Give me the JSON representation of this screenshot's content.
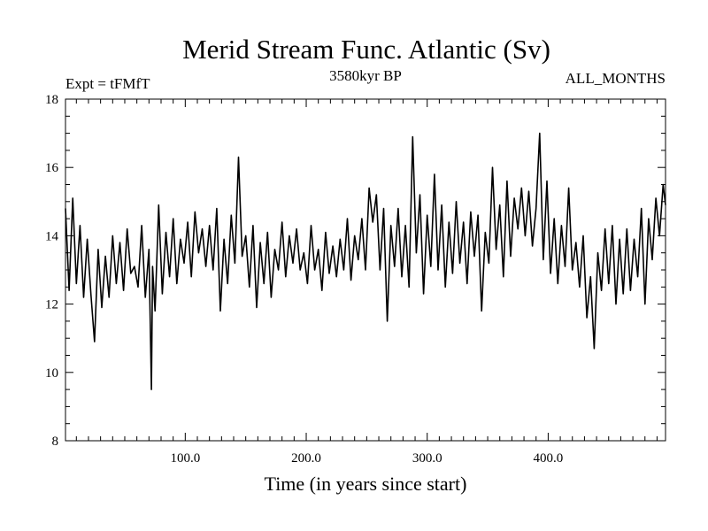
{
  "chart_data": {
    "type": "line",
    "title": "Merid Stream Func. Atlantic (Sv)",
    "subtitle_left": "Expt = tFMfT",
    "subtitle_center": "3580kyr BP",
    "subtitle_right": "ALL_MONTHS",
    "xlabel": "Time (in years since start)",
    "ylabel": "",
    "xlim": [
      1,
      497
    ],
    "ylim": [
      8,
      18
    ],
    "xticks": [
      100,
      200,
      300,
      400
    ],
    "xtick_labels": [
      "100.0",
      "200.0",
      "300.0",
      "400.0"
    ],
    "yticks": [
      8,
      10,
      12,
      14,
      16,
      18
    ],
    "ytick_labels": [
      "8",
      "10",
      "12",
      "14",
      "16",
      "18"
    ],
    "grid": false,
    "line_color": "#000000",
    "series": [
      {
        "name": "Merid Stream Func. Atlantic",
        "x": [
          1,
          4,
          7,
          10,
          13,
          16,
          19,
          22,
          25,
          28,
          31,
          34,
          37,
          40,
          43,
          46,
          49,
          52,
          55,
          58,
          61,
          64,
          67,
          70,
          72,
          73,
          75,
          78,
          81,
          84,
          87,
          90,
          93,
          96,
          99,
          102,
          105,
          108,
          111,
          114,
          117,
          120,
          123,
          126,
          129,
          132,
          135,
          138,
          141,
          144,
          147,
          150,
          153,
          156,
          159,
          162,
          165,
          168,
          171,
          174,
          177,
          180,
          183,
          186,
          189,
          192,
          195,
          198,
          201,
          204,
          207,
          210,
          213,
          216,
          219,
          222,
          225,
          228,
          231,
          234,
          237,
          240,
          243,
          246,
          249,
          252,
          255,
          258,
          261,
          264,
          267,
          270,
          273,
          276,
          279,
          282,
          285,
          288,
          291,
          294,
          297,
          300,
          303,
          306,
          309,
          312,
          315,
          318,
          321,
          324,
          327,
          330,
          333,
          336,
          339,
          342,
          345,
          348,
          351,
          354,
          357,
          360,
          363,
          366,
          369,
          372,
          375,
          378,
          381,
          384,
          387,
          390,
          393,
          396,
          399,
          402,
          405,
          408,
          411,
          414,
          417,
          420,
          423,
          426,
          429,
          432,
          435,
          438,
          441,
          444,
          447,
          450,
          453,
          456,
          459,
          462,
          465,
          468,
          471,
          474,
          477,
          480,
          483,
          486,
          489,
          492,
          495,
          497
        ],
        "values": [
          14.8,
          12.4,
          15.1,
          12.6,
          14.3,
          12.2,
          13.9,
          12.3,
          10.9,
          13.6,
          11.9,
          13.4,
          12.2,
          14.0,
          12.6,
          13.8,
          12.4,
          14.2,
          12.9,
          13.1,
          12.5,
          14.3,
          12.2,
          13.6,
          9.5,
          13.1,
          11.8,
          14.9,
          12.3,
          14.1,
          12.8,
          14.5,
          12.6,
          13.9,
          13.2,
          14.4,
          12.8,
          14.7,
          13.5,
          14.2,
          13.1,
          14.3,
          13.0,
          14.8,
          11.8,
          13.9,
          12.6,
          14.6,
          13.2,
          16.3,
          13.4,
          14.0,
          12.5,
          14.3,
          11.9,
          13.8,
          12.6,
          14.1,
          12.2,
          13.6,
          13.0,
          14.4,
          12.8,
          14.0,
          13.2,
          14.2,
          13.0,
          13.5,
          12.6,
          14.3,
          13.0,
          13.6,
          12.4,
          14.1,
          12.9,
          13.7,
          12.8,
          13.9,
          13.0,
          14.5,
          12.7,
          14.0,
          13.3,
          14.5,
          13.0,
          15.4,
          14.4,
          15.2,
          13.0,
          14.8,
          11.5,
          14.3,
          13.1,
          14.8,
          12.8,
          14.3,
          12.5,
          16.9,
          13.5,
          15.2,
          12.3,
          14.6,
          13.1,
          15.8,
          13.0,
          14.9,
          12.5,
          14.4,
          12.9,
          15.0,
          13.2,
          14.4,
          12.6,
          14.7,
          13.4,
          14.6,
          11.8,
          14.1,
          13.2,
          16.0,
          13.6,
          14.9,
          12.8,
          15.6,
          13.4,
          15.1,
          14.2,
          15.4,
          14.0,
          15.3,
          13.7,
          14.8,
          17.0,
          13.3,
          15.6,
          12.9,
          14.5,
          12.6,
          14.3,
          13.1,
          15.4,
          13.0,
          13.8,
          12.5,
          14.0,
          11.6,
          12.8,
          10.7,
          13.5,
          12.4,
          14.2,
          12.6,
          14.3,
          12.0,
          13.9,
          12.3,
          14.2,
          12.4,
          13.9,
          12.8,
          14.8,
          12.0,
          14.5,
          13.3,
          15.1,
          14.0,
          15.5,
          14.9
        ]
      }
    ]
  }
}
